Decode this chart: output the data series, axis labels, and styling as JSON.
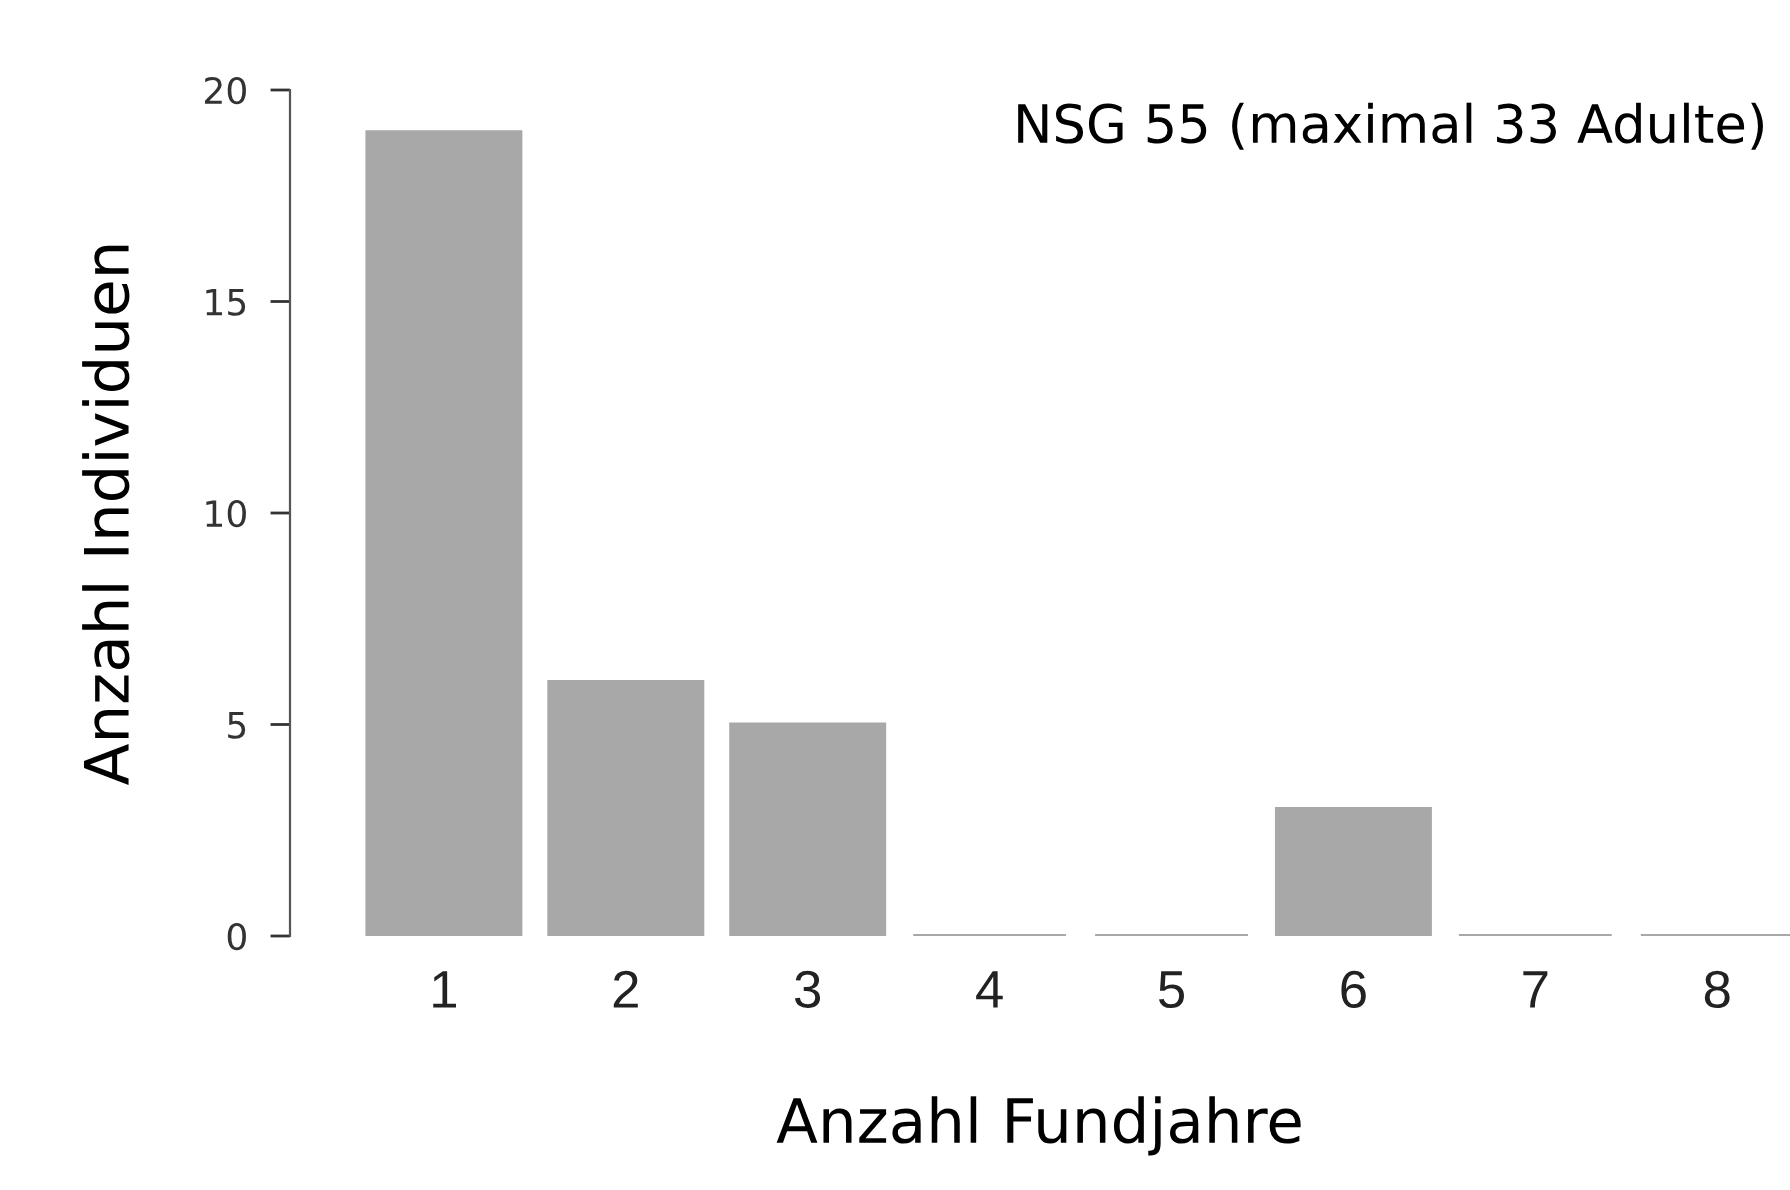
{
  "chart_data": {
    "type": "bar",
    "xlabel": "Anzahl Fundjahre",
    "ylabel": "Anzahl Individuen",
    "categories": [
      "1",
      "2",
      "3",
      "4",
      "5",
      "6",
      "7",
      "8"
    ],
    "values": [
      19,
      6,
      5,
      0,
      0,
      3,
      0,
      0
    ],
    "color": "#a8a8a8",
    "ylim": [
      0,
      20
    ],
    "yticks": [
      0,
      5,
      10,
      15,
      20
    ],
    "grid": false,
    "legend": false,
    "annotations": [
      "NSG 55 (maximal 33 Adulte)"
    ]
  }
}
